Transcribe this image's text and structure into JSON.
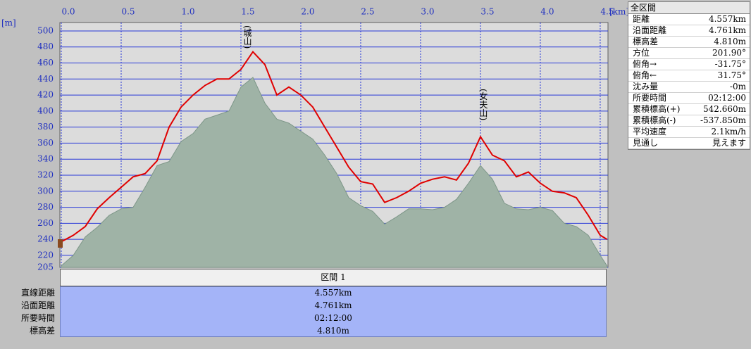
{
  "chart_data": {
    "type": "line",
    "x_unit": "[km]",
    "y_unit": "[m]",
    "x": [
      0,
      0.1,
      0.2,
      0.3,
      0.4,
      0.5,
      0.6,
      0.7,
      0.8,
      0.9,
      1.0,
      1.1,
      1.2,
      1.3,
      1.4,
      1.5,
      1.6,
      1.7,
      1.8,
      1.9,
      2.0,
      2.1,
      2.2,
      2.3,
      2.4,
      2.5,
      2.6,
      2.7,
      2.8,
      2.9,
      3.0,
      3.1,
      3.2,
      3.3,
      3.4,
      3.5,
      3.6,
      3.7,
      3.8,
      3.9,
      4.0,
      4.1,
      4.2,
      4.3,
      4.4,
      4.5,
      4.557
    ],
    "series": [
      {
        "color": "#9fb3a6",
        "fill": true,
        "values": [
          207,
          220,
          243,
          255,
          270,
          278,
          280,
          305,
          332,
          337,
          362,
          372,
          390,
          395,
          400,
          430,
          442,
          410,
          390,
          385,
          375,
          365,
          345,
          322,
          292,
          282,
          275,
          259,
          268,
          278,
          278,
          277,
          280,
          290,
          310,
          332,
          315,
          285,
          278,
          277,
          280,
          276,
          260,
          256,
          245,
          220,
          207
        ]
      },
      {
        "color": "#e00000",
        "fill": false,
        "values": [
          237,
          245,
          256,
          278,
          292,
          305,
          318,
          322,
          338,
          380,
          405,
          420,
          432,
          440,
          440,
          452,
          474,
          458,
          420,
          430,
          420,
          405,
          380,
          355,
          330,
          312,
          309,
          286,
          292,
          300,
          310,
          315,
          318,
          314,
          335,
          368,
          345,
          338,
          318,
          324,
          310,
          300,
          298,
          292,
          270,
          245,
          240
        ]
      }
    ],
    "annotations": [
      {
        "text": "(城山)",
        "x": 1.55
      },
      {
        "text": "(女夫山)",
        "x": 3.52
      }
    ],
    "xlim": [
      0,
      4.565
    ],
    "ylim": [
      205,
      510.5
    ],
    "xticks": [
      {
        "value": 0,
        "label": "0.0"
      },
      0.5,
      {
        "value": 1,
        "label": "1.0"
      },
      1.5,
      {
        "value": 2,
        "label": "2.0"
      },
      2.5,
      {
        "value": 3,
        "label": "3.0"
      },
      3.5,
      {
        "value": 4,
        "label": "4.0"
      },
      4.5
    ],
    "yticks": [
      205,
      220,
      240,
      260,
      280,
      300,
      320,
      340,
      360,
      380,
      400,
      420,
      440,
      460,
      480,
      500
    ],
    "grid": true
  },
  "panel": {
    "title": "全区間",
    "rows": [
      [
        "距離",
        "4.557km"
      ],
      [
        "沿面距離",
        "4.761km"
      ],
      [
        "標高差",
        "4.810m"
      ],
      [
        "方位",
        "201.90°"
      ],
      [
        "俯角→",
        "-31.75°"
      ],
      [
        "俯角←",
        "31.75°"
      ],
      [
        "沈み量",
        "-0m"
      ],
      [
        "所要時間",
        "02:12:00"
      ],
      [
        "累積標高(+)",
        "542.660m"
      ],
      [
        "累積標高(-)",
        "-537.850m"
      ],
      [
        "平均速度",
        "2.1km/h"
      ],
      [
        "見通し",
        "見えます"
      ]
    ]
  },
  "section": {
    "title": "区間 1",
    "rows": [
      [
        "直線距離",
        "4.557km"
      ],
      [
        "沿面距離",
        "4.761km"
      ],
      [
        "所要時間",
        "02:12:00"
      ],
      [
        "標高差",
        "4.810m"
      ]
    ]
  }
}
